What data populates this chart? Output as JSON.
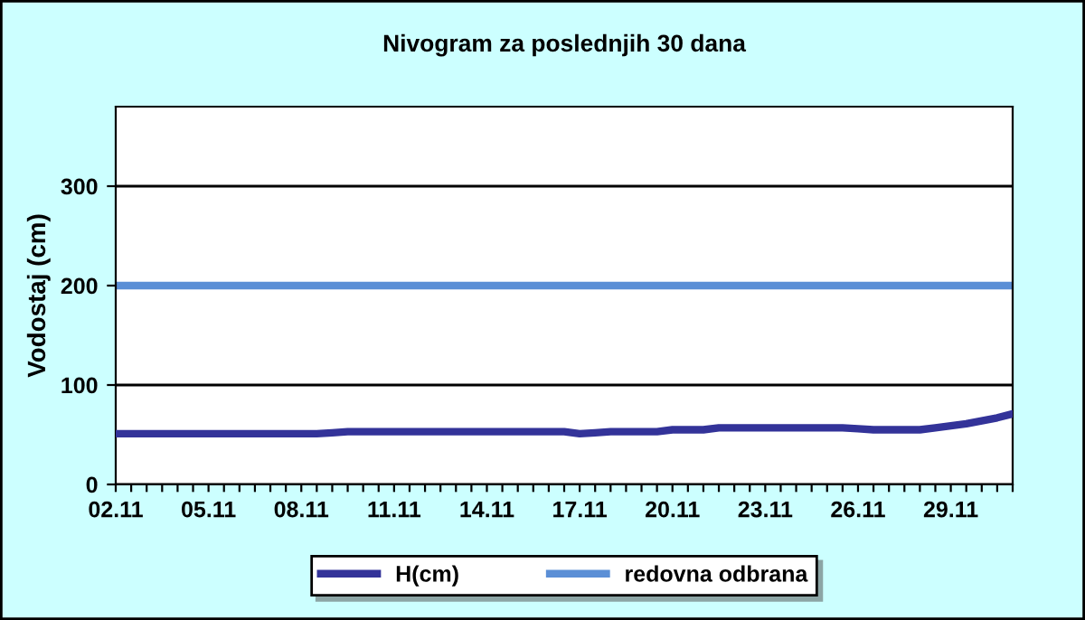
{
  "chart_data": {
    "type": "line",
    "title": "Nivogram za poslednjih 30 dana",
    "ylabel": "Vodostaj (cm)",
    "categories": [
      "02.11",
      null,
      null,
      null,
      null,
      null,
      "05.11",
      null,
      null,
      null,
      null,
      null,
      "08.11",
      null,
      null,
      null,
      null,
      null,
      "11.11",
      null,
      null,
      null,
      null,
      null,
      "14.11",
      null,
      null,
      null,
      null,
      null,
      "17.11",
      null,
      null,
      null,
      null,
      null,
      "20.11",
      null,
      null,
      null,
      null,
      null,
      "23.11",
      null,
      null,
      null,
      null,
      null,
      "26.11",
      null,
      null,
      null,
      null,
      null,
      "29.11",
      null,
      null,
      null,
      null
    ],
    "series": [
      {
        "name": "H(cm)",
        "color": "#333399",
        "values": [
          51,
          51,
          51,
          51,
          51,
          51,
          51,
          51,
          51,
          51,
          51,
          51,
          51,
          51,
          52,
          53,
          53,
          53,
          53,
          53,
          53,
          53,
          53,
          53,
          53,
          53,
          53,
          53,
          53,
          53,
          51,
          52,
          53,
          53,
          53,
          53,
          55,
          55,
          55,
          57,
          57,
          57,
          57,
          57,
          57,
          57,
          57,
          57,
          56,
          55,
          55,
          55,
          55,
          57,
          59,
          61,
          64,
          67,
          71
        ]
      }
    ],
    "ref_lines": [
      {
        "axis": "y",
        "value": 200,
        "label": "redovna odbrana",
        "color": "#5b8fd6"
      }
    ],
    "ylim": [
      0,
      380
    ],
    "yticks": [
      0,
      100,
      200,
      300
    ],
    "grid": "y",
    "legend": "bottom",
    "marker": "none",
    "line_style": "solid"
  }
}
